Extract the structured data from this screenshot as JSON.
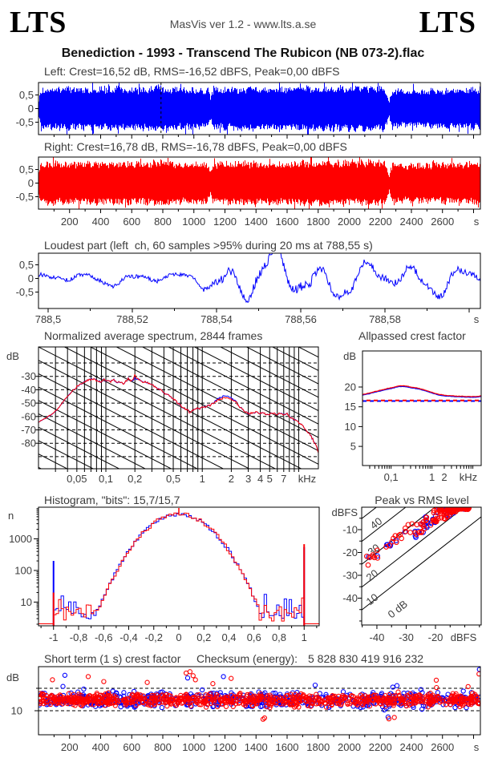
{
  "header": {
    "logo_left": "LTS",
    "logo_right": "LTS",
    "app_info": "MasVis ver 1.2 - www.lts.a.se"
  },
  "title": "Benediction - 1993 - Transcend The Rubicon (NB 073-2).flac",
  "colors": {
    "left_channel": "#0000ff",
    "right_channel": "#ff0000",
    "axis": "#000000",
    "text": "#3d3d3d"
  },
  "chart_data": [
    {
      "name": "waveform-left",
      "type": "area",
      "channel": "left",
      "color": "#0000ff",
      "title": "Left: Crest=16,52 dB, RMS=-16,52 dBFS, Peak=0,00 dBFS",
      "crest_db": "16,52",
      "rms_dbfs": "-16,52",
      "peak_dbfs": "0,00",
      "yticks": [
        {
          "label": "0,5",
          "v": 0.5
        },
        {
          "label": "0",
          "v": 0
        },
        {
          "label": "-0,5",
          "v": -0.5
        }
      ],
      "duration_s": 2844,
      "marker_s": 788.55,
      "ylim": [
        -1,
        1
      ],
      "envelope": [
        [
          0,
          0.4
        ],
        [
          15,
          0.78
        ],
        [
          60,
          0.8
        ],
        [
          200,
          0.82
        ],
        [
          350,
          0.8
        ],
        [
          500,
          0.84
        ],
        [
          650,
          0.8
        ],
        [
          788,
          0.9
        ],
        [
          850,
          0.82
        ],
        [
          1000,
          0.8
        ],
        [
          1090,
          0.78
        ],
        [
          1108,
          0.45
        ],
        [
          1125,
          0.8
        ],
        [
          1300,
          0.82
        ],
        [
          1500,
          0.8
        ],
        [
          1700,
          0.84
        ],
        [
          1900,
          0.86
        ],
        [
          2100,
          0.86
        ],
        [
          2230,
          0.88
        ],
        [
          2248,
          0.6
        ],
        [
          2258,
          0.22
        ],
        [
          2266,
          0.5
        ],
        [
          2280,
          0.75
        ],
        [
          2350,
          0.72
        ],
        [
          2500,
          0.75
        ],
        [
          2700,
          0.78
        ],
        [
          2844,
          0.82
        ]
      ],
      "seed": 11
    },
    {
      "name": "waveform-right",
      "type": "area",
      "channel": "right",
      "color": "#ff0000",
      "title": "Right: Crest=16,78 dB, RMS=-16,78 dBFS, Peak=0,00 dBFS",
      "crest_db": "16,78",
      "rms_dbfs": "-16,78",
      "peak_dbfs": "0,00",
      "yticks": [
        {
          "label": "0,5",
          "v": 0.5
        },
        {
          "label": "0",
          "v": 0
        },
        {
          "label": "-0,5",
          "v": -0.5
        }
      ],
      "duration_s": 2844,
      "ylim": [
        -1,
        1
      ],
      "xticks": [
        {
          "label": "200",
          "v": 200
        },
        {
          "label": "400",
          "v": 400
        },
        {
          "label": "600",
          "v": 600
        },
        {
          "label": "800",
          "v": 800
        },
        {
          "label": "1000",
          "v": 1000
        },
        {
          "label": "1200",
          "v": 1200
        },
        {
          "label": "1400",
          "v": 1400
        },
        {
          "label": "1600",
          "v": 1600
        },
        {
          "label": "1800",
          "v": 1800
        },
        {
          "label": "2000",
          "v": 2000
        },
        {
          "label": "2200",
          "v": 2200
        },
        {
          "label": "2400",
          "v": 2400
        },
        {
          "label": "2600",
          "v": 2600
        }
      ],
      "xunit": "s",
      "envelope": [
        [
          0,
          0.42
        ],
        [
          15,
          0.8
        ],
        [
          60,
          0.82
        ],
        [
          200,
          0.83
        ],
        [
          350,
          0.81
        ],
        [
          500,
          0.85
        ],
        [
          650,
          0.81
        ],
        [
          788,
          0.9
        ],
        [
          850,
          0.83
        ],
        [
          1000,
          0.81
        ],
        [
          1090,
          0.79
        ],
        [
          1108,
          0.46
        ],
        [
          1125,
          0.81
        ],
        [
          1300,
          0.83
        ],
        [
          1500,
          0.81
        ],
        [
          1700,
          0.85
        ],
        [
          1900,
          0.87
        ],
        [
          2100,
          0.87
        ],
        [
          2230,
          0.89
        ],
        [
          2248,
          0.6
        ],
        [
          2258,
          0.24
        ],
        [
          2266,
          0.5
        ],
        [
          2280,
          0.76
        ],
        [
          2350,
          0.73
        ],
        [
          2500,
          0.76
        ],
        [
          2700,
          0.79
        ],
        [
          2844,
          0.83
        ]
      ],
      "seed": 77
    },
    {
      "name": "loudest-part",
      "type": "line",
      "channel": "left",
      "color": "#0000ff",
      "title": "Loudest part (left  ch, 60 samples >95% during 20 ms at 788,55 s)",
      "samples_over_95pct": 60,
      "window_ms": 20,
      "at_s": "788,55",
      "yticks": [
        {
          "label": "0,5",
          "v": 0.5
        },
        {
          "label": "0",
          "v": 0
        },
        {
          "label": "-0,5",
          "v": -0.5
        }
      ],
      "xticks": [
        {
          "label": "788,5",
          "v": 788.5
        },
        {
          "label": "788,52",
          "v": 788.52
        },
        {
          "label": "788,54",
          "v": 788.54
        },
        {
          "label": "788,56",
          "v": 788.56
        },
        {
          "label": "788,58",
          "v": 788.58
        }
      ],
      "xunit": "s",
      "seed": 5
    },
    {
      "name": "normalized-average-spectrum",
      "type": "line",
      "title": "Normalized average spectrum, 2844 frames",
      "frames": 2844,
      "ylabel": "dB",
      "yticks": [
        -30,
        -40,
        -50,
        -60,
        -70,
        -80
      ],
      "ylim": [
        -100,
        -8
      ],
      "xticks": [
        {
          "label": "0,05",
          "f": 0.05
        },
        {
          "label": "0,1",
          "f": 0.1
        },
        {
          "label": "0,2",
          "f": 0.2
        },
        {
          "label": "0,5",
          "f": 0.5
        },
        {
          "label": "1",
          "f": 1
        },
        {
          "label": "2",
          "f": 2
        },
        {
          "label": "3",
          "f": 3
        },
        {
          "label": "4",
          "f": 4
        },
        {
          "label": "5",
          "f": 5
        },
        {
          "label": "7",
          "f": 7
        }
      ],
      "xunit": "kHz",
      "fmin": 0.02,
      "fmax": 16.3,
      "series_red": [
        [
          0.02,
          -64
        ],
        [
          0.024,
          -61
        ],
        [
          0.028,
          -58
        ],
        [
          0.032,
          -54
        ],
        [
          0.036,
          -49
        ],
        [
          0.04,
          -45
        ],
        [
          0.045,
          -41
        ],
        [
          0.05,
          -37.5
        ],
        [
          0.055,
          -35.5
        ],
        [
          0.06,
          -34
        ],
        [
          0.065,
          -32.5
        ],
        [
          0.07,
          -32
        ],
        [
          0.075,
          -32.5
        ],
        [
          0.08,
          -33
        ],
        [
          0.085,
          -34
        ],
        [
          0.09,
          -34.5
        ],
        [
          0.095,
          -32
        ],
        [
          0.1,
          -33
        ],
        [
          0.11,
          -34
        ],
        [
          0.12,
          -32.5
        ],
        [
          0.13,
          -34.5
        ],
        [
          0.14,
          -34
        ],
        [
          0.15,
          -35.5
        ],
        [
          0.16,
          -34
        ],
        [
          0.17,
          -31.5
        ],
        [
          0.18,
          -33.5
        ],
        [
          0.19,
          -33
        ],
        [
          0.2,
          -28.5
        ],
        [
          0.21,
          -32.5
        ],
        [
          0.22,
          -32
        ],
        [
          0.24,
          -34.5
        ],
        [
          0.26,
          -34
        ],
        [
          0.28,
          -35.5
        ],
        [
          0.3,
          -36.5
        ],
        [
          0.33,
          -38
        ],
        [
          0.36,
          -39.5
        ],
        [
          0.4,
          -42
        ],
        [
          0.45,
          -44.5
        ],
        [
          0.5,
          -47
        ],
        [
          0.55,
          -49.5
        ],
        [
          0.6,
          -52
        ],
        [
          0.65,
          -54
        ],
        [
          0.7,
          -55.5
        ],
        [
          0.75,
          -57
        ],
        [
          0.8,
          -55.5
        ],
        [
          0.85,
          -54.5
        ],
        [
          0.9,
          -54
        ],
        [
          1.0,
          -53.5
        ],
        [
          1.1,
          -53
        ],
        [
          1.2,
          -51.5
        ],
        [
          1.3,
          -50
        ],
        [
          1.4,
          -48.5
        ],
        [
          1.5,
          -47.5
        ],
        [
          1.6,
          -46.5
        ],
        [
          1.7,
          -46
        ],
        [
          1.8,
          -46
        ],
        [
          1.9,
          -46.5
        ],
        [
          2.0,
          -47
        ],
        [
          2.2,
          -49
        ],
        [
          2.4,
          -52
        ],
        [
          2.6,
          -54.5
        ],
        [
          2.8,
          -56.5
        ],
        [
          3.0,
          -58
        ],
        [
          3.3,
          -57.5
        ],
        [
          3.6,
          -57
        ],
        [
          4.0,
          -57.5
        ],
        [
          4.5,
          -58
        ],
        [
          5.0,
          -58
        ],
        [
          5.5,
          -57.5
        ],
        [
          6.0,
          -58.5
        ],
        [
          6.5,
          -58
        ],
        [
          7.0,
          -59
        ],
        [
          7.5,
          -57.5
        ],
        [
          8.0,
          -60
        ],
        [
          8.5,
          -61
        ],
        [
          9.0,
          -62.5
        ],
        [
          10,
          -64.5
        ],
        [
          11,
          -67
        ],
        [
          12,
          -70
        ],
        [
          13,
          -73
        ],
        [
          14,
          -77
        ],
        [
          15,
          -81
        ],
        [
          15.8,
          -85
        ],
        [
          16.3,
          -88
        ]
      ],
      "blue_delta": [
        [
          0.185,
          0
        ],
        [
          0.2,
          -2.2
        ],
        [
          0.215,
          0
        ],
        [
          1.25,
          0
        ],
        [
          1.45,
          1.1
        ],
        [
          1.6,
          1.3
        ],
        [
          1.9,
          1.2
        ],
        [
          2.15,
          0.8
        ],
        [
          2.35,
          0
        ]
      ],
      "seed": 31
    },
    {
      "name": "allpassed-crest-factor",
      "type": "line",
      "title": "Allpassed crest factor",
      "ylabel": "dB",
      "yticks": [
        20,
        15,
        10,
        5
      ],
      "ylim": [
        0,
        29
      ],
      "xticks": [
        {
          "label": "0,1",
          "f": 0.1
        },
        {
          "label": "1",
          "f": 1
        },
        {
          "label": "2",
          "f": 2
        }
      ],
      "xunit": "kHz",
      "fmin": 0.02,
      "fmax": 16,
      "series_red": [
        [
          0.02,
          18.1
        ],
        [
          0.03,
          18.5
        ],
        [
          0.05,
          19.1
        ],
        [
          0.08,
          19.6
        ],
        [
          0.1,
          19.8
        ],
        [
          0.13,
          20.1
        ],
        [
          0.16,
          20.3
        ],
        [
          0.2,
          20.3
        ],
        [
          0.25,
          20.2
        ],
        [
          0.3,
          20.0
        ],
        [
          0.4,
          19.8
        ],
        [
          0.5,
          19.6
        ],
        [
          0.7,
          19.2
        ],
        [
          0.9,
          18.8
        ],
        [
          1.1,
          18.5
        ],
        [
          1.4,
          18.2
        ],
        [
          1.8,
          18.0
        ],
        [
          2.2,
          17.9
        ],
        [
          3,
          17.8
        ],
        [
          4,
          17.7
        ],
        [
          5,
          17.7
        ],
        [
          7,
          17.6
        ],
        [
          9,
          17.6
        ],
        [
          12,
          17.6
        ],
        [
          16,
          17.8
        ]
      ],
      "blue_offset": -0.18,
      "dashed_red": 16.6,
      "dashed_blue": 16.45,
      "seed": 13
    },
    {
      "name": "histogram",
      "type": "bar",
      "title": "Histogram, \"bits\": 15,7/15,7",
      "bits_left": "15,7",
      "bits_right": "15,7",
      "ylabel": "n",
      "yticks": [
        {
          "label": "1000",
          "n": 1000
        },
        {
          "label": "100",
          "n": 100
        },
        {
          "label": "10",
          "n": 10
        }
      ],
      "xticks": [
        {
          "label": "-1",
          "v": -1
        },
        {
          "label": "-0,8",
          "v": -0.8
        },
        {
          "label": "-0,6",
          "v": -0.6
        },
        {
          "label": "-0,4",
          "v": -0.4
        },
        {
          "label": "-0,2",
          "v": -0.2
        },
        {
          "label": "0",
          "v": 0
        },
        {
          "label": "0,2",
          "v": 0.2
        },
        {
          "label": "0,4",
          "v": 0.4
        },
        {
          "label": "0,6",
          "v": 0.6
        },
        {
          "label": "0,8",
          "v": 0.8
        },
        {
          "label": "1",
          "v": 1
        }
      ],
      "model": {
        "peak_log10": 3.78,
        "parabola_coeff": 7.3,
        "tail_log10": 0.5,
        "bin_width": 0.02
      },
      "spikes": {
        "neg1_blue": 200,
        "neg1_red": 20,
        "pos1_blue": 550,
        "pos1_red": 680,
        "zero_red_top": 9000
      },
      "seed_blue": 3,
      "seed_red": 9
    },
    {
      "name": "peak-vs-rms",
      "type": "scatter",
      "title": "Peak vs RMS level",
      "ylabel": "dBFS",
      "yticks": [
        -10,
        -20,
        -30,
        -40
      ],
      "xticks": [
        -40,
        -30,
        -20
      ],
      "xunit": "dBFS",
      "xlim": [
        -45.2,
        -4.4
      ],
      "ylim": [
        -51.8,
        -0.2
      ],
      "diagonals": [
        {
          "label": "40",
          "c": 40
        },
        {
          "label": "30",
          "c": 30
        },
        {
          "label": "20",
          "c": 20
        },
        {
          "label": "10",
          "c": 10
        },
        {
          "label": "0 dB",
          "c": 0
        }
      ],
      "n_red": 195,
      "n_blue": 75,
      "seed_red": 21,
      "seed_blue": 22
    },
    {
      "name": "short-term-crest-factor",
      "type": "scatter",
      "title": "Short term (1 s) crest factor",
      "checksum_label": "Checksum (energy):",
      "checksum_value": "5 828 830 419 916 232",
      "ylabel": "dB",
      "yticks": [
        {
          "label": "10",
          "v": 10
        }
      ],
      "dashed_levels": [
        15,
        10
      ],
      "xticks": [
        {
          "label": "200",
          "v": 200
        },
        {
          "label": "400",
          "v": 400
        },
        {
          "label": "600",
          "v": 600
        },
        {
          "label": "800",
          "v": 800
        },
        {
          "label": "1000",
          "v": 1000
        },
        {
          "label": "1200",
          "v": 1200
        },
        {
          "label": "1400",
          "v": 1400
        },
        {
          "label": "1600",
          "v": 1600
        },
        {
          "label": "1800",
          "v": 1800
        },
        {
          "label": "2000",
          "v": 2000
        },
        {
          "label": "2200",
          "v": 2200
        },
        {
          "label": "2400",
          "v": 2400
        },
        {
          "label": "2600",
          "v": 2600
        }
      ],
      "xunit": "s",
      "mean_db": 12.4,
      "outliers_blue": [
        [
          170,
          17.9
        ],
        [
          960,
          17.3
        ],
        [
          1190,
          17.6
        ],
        [
          2250,
          8.6
        ],
        [
          2838,
          19.2
        ]
      ],
      "outliers_red": [
        [
          90,
          16.9
        ],
        [
          320,
          17.6
        ],
        [
          420,
          16.5
        ],
        [
          700,
          16.3
        ],
        [
          950,
          18.4
        ],
        [
          975,
          18.7
        ],
        [
          995,
          17.8
        ],
        [
          1010,
          16.9
        ],
        [
          1240,
          17.2
        ],
        [
          1445,
          8.1
        ],
        [
          1455,
          8.4
        ],
        [
          2255,
          8.2
        ],
        [
          2290,
          8.5
        ],
        [
          2560,
          16.8
        ],
        [
          2835,
          18.2
        ]
      ],
      "n_red": 860,
      "n_blue": 560,
      "seed_red": 41,
      "seed_blue": 42
    }
  ]
}
